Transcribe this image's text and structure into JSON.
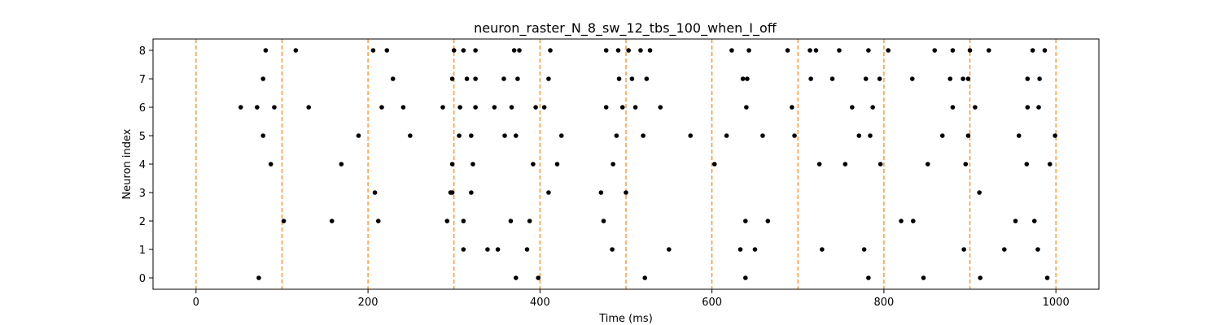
{
  "chart_data": {
    "type": "scatter",
    "title": "neuron_raster_N_8_sw_12_tbs_100_when_I_off",
    "xlabel": "Time (ms)",
    "ylabel": "Neuron index",
    "xlim": [
      -50,
      1050
    ],
    "ylim": [
      -0.4,
      8.4
    ],
    "xticks": [
      0,
      200,
      400,
      600,
      800,
      1000
    ],
    "yticks": [
      0,
      1,
      2,
      3,
      4,
      5,
      6,
      7,
      8
    ],
    "grid": false,
    "marker_color": "#000000",
    "stimulus_line_color": "#ff7f0e",
    "stimulus_times": [
      0,
      100,
      200,
      300,
      400,
      500,
      600,
      700,
      800,
      900,
      1000
    ],
    "spikes": [
      {
        "neuron": 0,
        "times": [
          73,
          372,
          398,
          522,
          639,
          782,
          846,
          912,
          990
        ]
      },
      {
        "neuron": 1,
        "times": [
          311,
          339,
          351,
          385,
          484,
          550,
          633,
          650,
          728,
          777,
          893,
          940,
          979
        ]
      },
      {
        "neuron": 2,
        "times": [
          102,
          158,
          212,
          292,
          311,
          366,
          388,
          474,
          639,
          665,
          820,
          834,
          953,
          975
        ]
      },
      {
        "neuron": 3,
        "times": [
          208,
          296,
          298,
          320,
          410,
          471,
          500,
          911
        ]
      },
      {
        "neuron": 4,
        "times": [
          87,
          169,
          298,
          322,
          392,
          420,
          485,
          603,
          725,
          755,
          796,
          851,
          895,
          966,
          993
        ]
      },
      {
        "neuron": 5,
        "times": [
          78,
          189,
          249,
          306,
          320,
          359,
          372,
          425,
          489,
          520,
          575,
          617,
          659,
          696,
          771,
          784,
          868,
          898,
          957,
          999
        ]
      },
      {
        "neuron": 6,
        "times": [
          52,
          71,
          91,
          131,
          216,
          241,
          287,
          307,
          325,
          347,
          367,
          395,
          405,
          477,
          496,
          511,
          540,
          640,
          693,
          763,
          787,
          880,
          906,
          967,
          980
        ]
      },
      {
        "neuron": 7,
        "times": [
          78,
          229,
          298,
          315,
          325,
          358,
          374,
          410,
          492,
          507,
          524,
          636,
          641,
          715,
          740,
          779,
          795,
          833,
          877,
          892,
          898,
          967,
          981
        ]
      },
      {
        "neuron": 8,
        "times": [
          81,
          116,
          206,
          222,
          300,
          311,
          325,
          370,
          376,
          412,
          477,
          491,
          503,
          517,
          528,
          623,
          643,
          688,
          714,
          721,
          748,
          782,
          805,
          859,
          880,
          900,
          922,
          973,
          987
        ]
      }
    ]
  }
}
